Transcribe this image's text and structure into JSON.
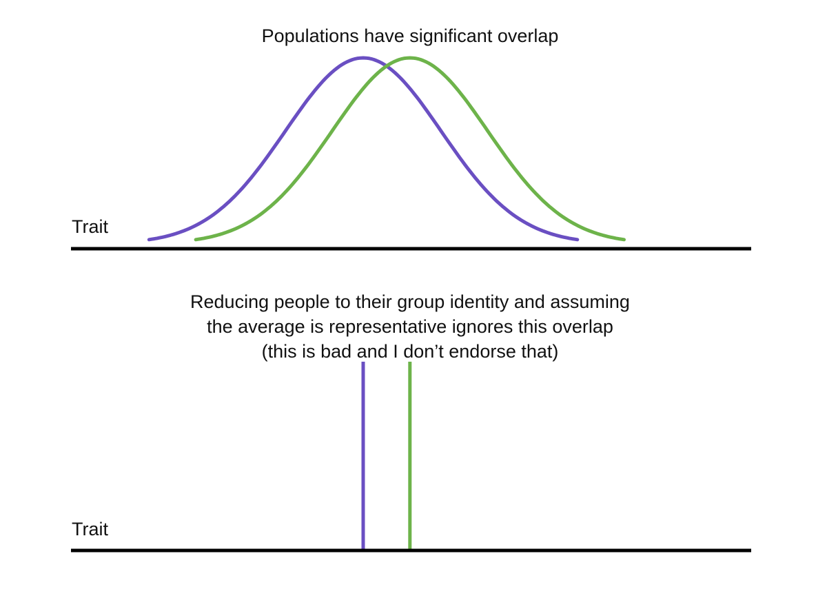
{
  "panels": {
    "top": {
      "caption": "Populations have significant overlap",
      "axis_label": "Trait"
    },
    "bottom": {
      "caption_lines": [
        "Reducing people to their group identity and assuming",
        "the average is representative ignores this overlap",
        "(this is bad and I don’t endorse that)"
      ],
      "axis_label": "Trait"
    }
  },
  "colors": {
    "group_a": "#6a4fc2",
    "group_b": "#6db34a",
    "axis": "#000000"
  },
  "chart_data": {
    "type": "line",
    "title": "",
    "xlabel": "Trait",
    "ylabel": "",
    "series": [
      {
        "key": "group_a",
        "mean": 0.0,
        "sd": 1.0
      },
      {
        "key": "group_b",
        "mean": 0.6,
        "sd": 1.0
      }
    ],
    "xlim": [
      -2.9,
      3.4
    ]
  }
}
